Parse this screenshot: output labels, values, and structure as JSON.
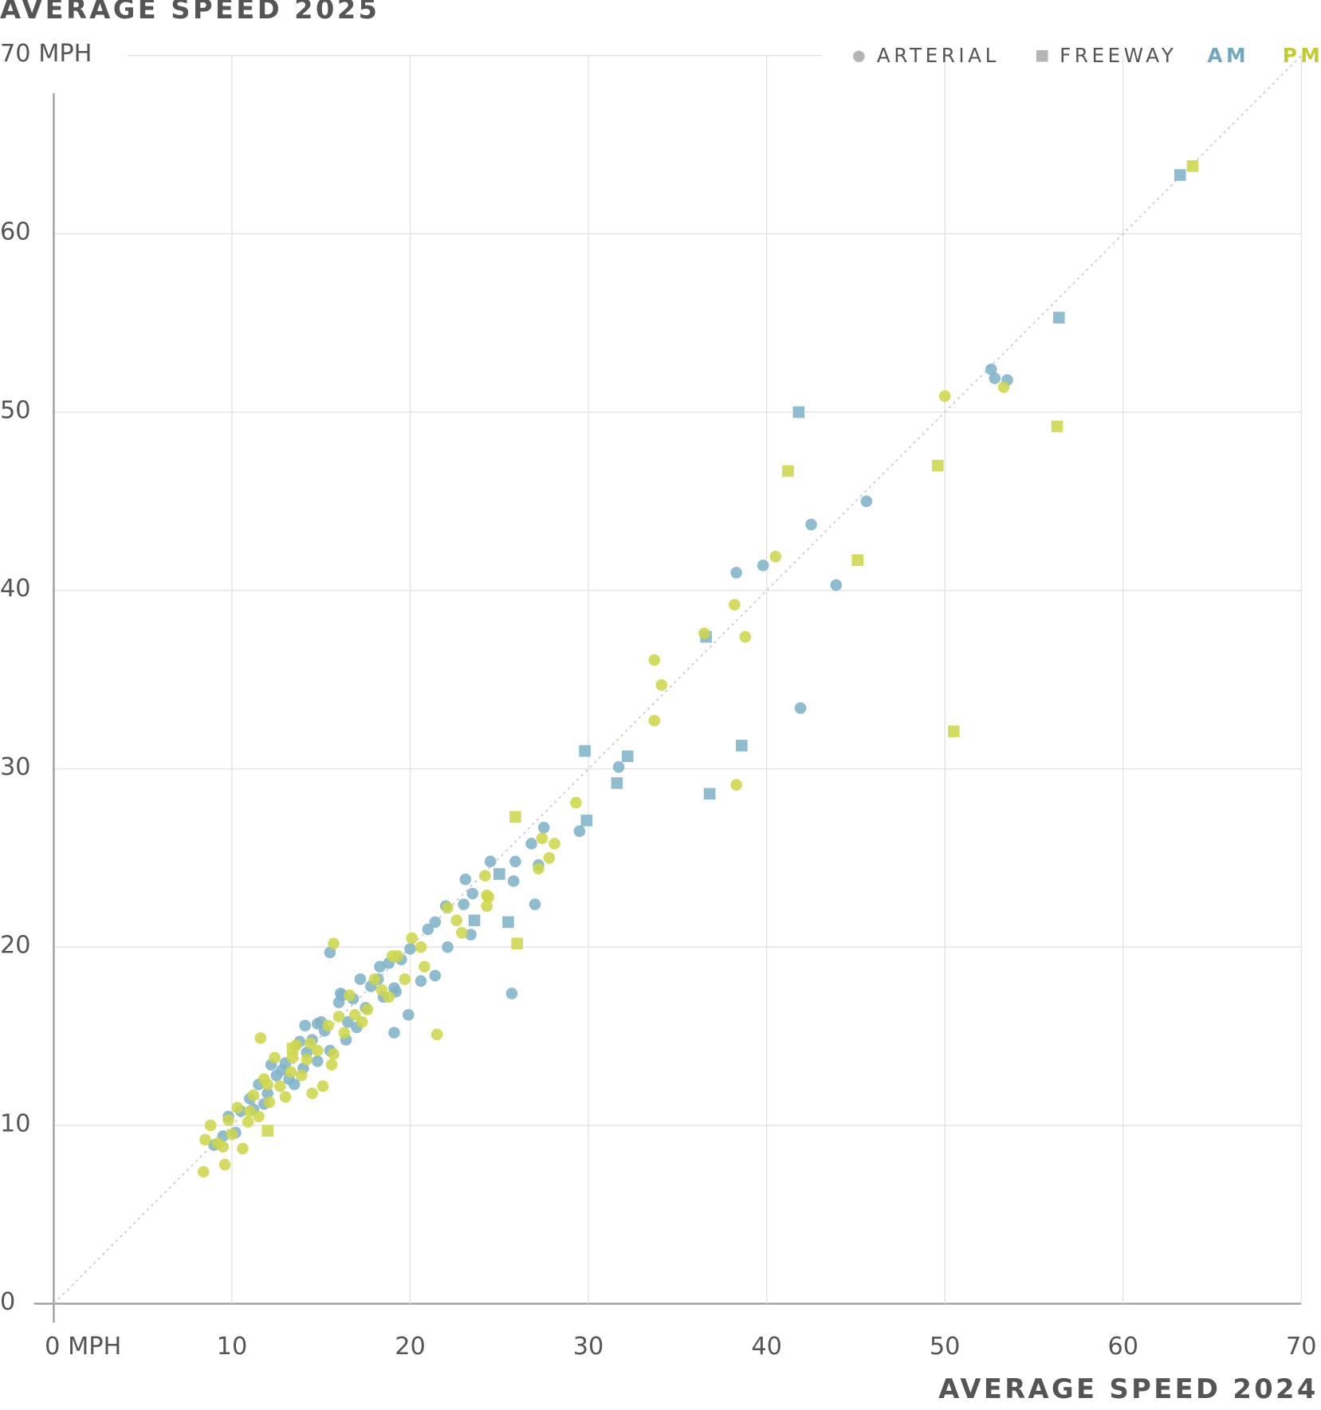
{
  "chart_data": {
    "type": "scatter",
    "title": "AVERAGE SPEED 2025",
    "x_label": "AVERAGE SPEED 2024",
    "xlim": [
      0,
      70
    ],
    "ylim": [
      0,
      70
    ],
    "xticks": [
      {
        "value": 0,
        "label": "0 MPH"
      },
      10,
      20,
      30,
      40,
      50,
      60,
      70
    ],
    "yticks": [
      0,
      10,
      20,
      30,
      40,
      50,
      60,
      {
        "value": 70,
        "label": "70 MPH"
      }
    ],
    "grid": true,
    "diagonal": true,
    "legend": {
      "position": "top-right",
      "markers": [
        {
          "label": "ARTERIAL",
          "marker": "circle",
          "color": "#b5b5b5"
        },
        {
          "label": "FREEWAY",
          "marker": "square",
          "color": "#b5b5b5"
        }
      ],
      "colors": [
        {
          "label": "AM",
          "color": "#6fa8bf"
        },
        {
          "label": "PM",
          "color": "#c3cc2e"
        }
      ]
    },
    "series": [
      {
        "marker": "circle",
        "color": "#7fb3c8",
        "x": [
          52.6,
          52.8,
          53.5,
          45.6,
          42.5,
          39.8,
          38.3,
          43.9,
          41.9,
          31.7,
          27.5,
          26.8,
          29.5,
          27.2,
          25.9,
          24.5,
          25.8,
          27.0,
          23.1,
          23.5,
          23.0,
          22.0,
          23.4,
          21.4,
          21.0,
          22.1,
          21.4,
          20.6,
          20.0,
          25.7,
          19.1,
          19.9,
          15.5,
          19.1,
          18.3,
          17.2,
          16.1,
          14.1,
          14.8,
          9,
          9.5,
          9.8,
          10.5,
          11,
          11.5,
          12,
          12.2,
          12.5,
          13,
          13.2,
          13.8,
          14.2,
          14.5,
          14.8,
          15.2,
          15.5,
          16,
          16.2,
          16.5,
          16.8,
          17,
          17.5,
          17.8,
          18.2,
          18.5,
          18.8,
          19.2,
          19.5,
          11.2,
          12.8,
          13.5,
          14,
          15,
          16.4,
          10.2,
          11.8
        ],
        "values": [
          52.4,
          51.9,
          51.8,
          45.0,
          43.7,
          41.4,
          41.0,
          40.3,
          33.4,
          30.1,
          26.7,
          25.8,
          26.5,
          24.6,
          24.8,
          24.8,
          23.7,
          22.4,
          23.8,
          23.0,
          22.4,
          22.3,
          20.7,
          21.4,
          21.0,
          20.0,
          18.4,
          18.1,
          19.9,
          17.4,
          15.2,
          16.2,
          19.7,
          17.7,
          18.9,
          18.2,
          17.4,
          15.6,
          15.7,
          8.9,
          9.4,
          10.5,
          10.8,
          11.5,
          12.3,
          11.8,
          13.4,
          12.8,
          13.5,
          12.6,
          14.7,
          14.1,
          14.8,
          13.6,
          15.3,
          14.2,
          16.9,
          17.3,
          15.8,
          17.1,
          15.5,
          16.6,
          17.8,
          18.2,
          17.2,
          19.1,
          17.5,
          19.3,
          10.9,
          13.1,
          12.3,
          13.2,
          15.8,
          14.8,
          9.6,
          11.2
        ]
      },
      {
        "marker": "square",
        "color": "#7fb3c8",
        "x": [
          63.2,
          56.4,
          41.8,
          36.6,
          29.8,
          32.2,
          31.6,
          36.8,
          38.6,
          29.9,
          25.0,
          23.6,
          25.5
        ],
        "values": [
          63.3,
          55.3,
          50.0,
          37.4,
          31.0,
          30.7,
          29.2,
          28.6,
          31.3,
          27.1,
          24.1,
          21.5,
          21.4
        ]
      },
      {
        "marker": "circle",
        "color": "#cdd64a",
        "x": [
          50.0,
          53.3,
          40.5,
          38.2,
          38.8,
          36.5,
          33.7,
          34.1,
          33.7,
          38.3,
          29.3,
          28.1,
          27.4,
          27.8,
          27.2,
          24.2,
          24.3,
          24.4,
          24.3,
          22.1,
          22.6,
          22.9,
          21.5,
          15.7,
          20.1,
          20.6,
          20.8,
          19.7,
          19.0,
          11.6,
          8.4,
          9.6,
          8.5,
          8.8,
          9.2,
          9.5,
          9.8,
          10,
          10.3,
          10.6,
          10.9,
          11.2,
          11.5,
          11.8,
          12.1,
          12.4,
          12.7,
          13,
          13.3,
          13.6,
          13.9,
          14.2,
          14.5,
          14.8,
          15.1,
          15.4,
          15.7,
          16,
          16.3,
          16.6,
          16.9,
          17.3,
          17.6,
          18,
          18.4,
          18.8,
          19.3,
          11,
          12,
          13.4,
          14.4,
          15.6
        ],
        "values": [
          50.9,
          51.4,
          41.9,
          39.2,
          37.4,
          37.6,
          36.1,
          34.7,
          32.7,
          29.1,
          28.1,
          25.8,
          26.1,
          25.0,
          24.4,
          24.0,
          22.9,
          22.8,
          22.3,
          22.2,
          21.5,
          20.8,
          15.1,
          20.2,
          20.5,
          20.0,
          18.9,
          18.2,
          19.5,
          14.9,
          7.4,
          7.8,
          9.2,
          10,
          9,
          8.8,
          10.3,
          9.5,
          11,
          8.7,
          10.2,
          11.7,
          10.5,
          12.6,
          11.3,
          13.8,
          12.2,
          11.6,
          13,
          14.5,
          12.8,
          13.7,
          11.8,
          14.2,
          12.2,
          15.6,
          14,
          16.1,
          15.2,
          17.3,
          16.2,
          15.8,
          16.5,
          18.2,
          17.6,
          17.2,
          19.5,
          10.8,
          12.3,
          13.8,
          14.6,
          13.4
        ]
      },
      {
        "marker": "square",
        "color": "#cdd64a",
        "x": [
          63.9,
          56.3,
          41.2,
          49.6,
          45.1,
          50.5,
          25.9,
          26.0,
          12.0,
          13.4
        ],
        "values": [
          63.8,
          49.2,
          46.7,
          47.0,
          41.7,
          32.1,
          27.3,
          20.2,
          9.7,
          14.3
        ]
      }
    ]
  }
}
